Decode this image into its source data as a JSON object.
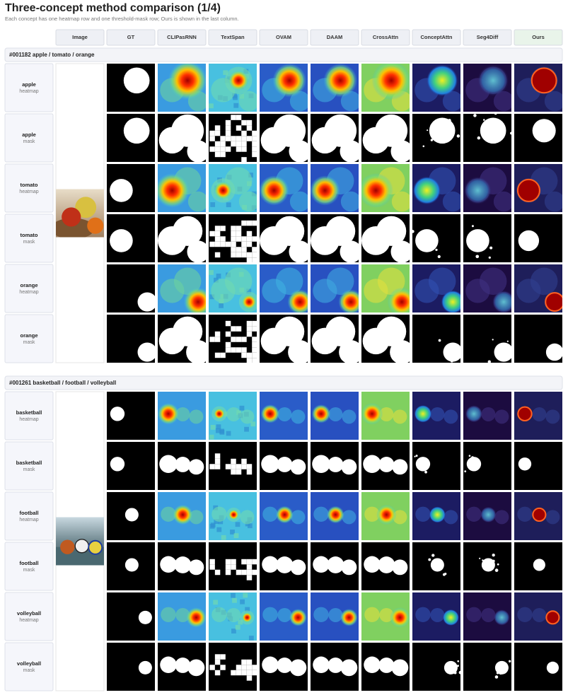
{
  "header": {
    "title": "Three-concept method comparison (1/4)",
    "subtitle": "Each concept has one heatmap row and one threshold-mask row; Ours is shown in the last column."
  },
  "columns": [
    "Image",
    "GT",
    "CLIPasRNN",
    "TextSpan",
    "OVAM",
    "DAAM",
    "CrossAttn",
    "ConceptAttn",
    "Seg4Diff",
    "Ours"
  ],
  "sections": [
    {
      "label": "#001182  apple / tomato / orange",
      "rows": [
        {
          "concept": "apple",
          "kind": "heatmap"
        },
        {
          "concept": "apple",
          "kind": "mask"
        },
        {
          "concept": "tomato",
          "kind": "heatmap"
        },
        {
          "concept": "tomato",
          "kind": "mask"
        },
        {
          "concept": "orange",
          "kind": "heatmap"
        },
        {
          "concept": "orange",
          "kind": "mask"
        }
      ]
    },
    {
      "label": "#001261  basketball / football / volleyball",
      "rows": [
        {
          "concept": "basketball",
          "kind": "heatmap"
        },
        {
          "concept": "basketball",
          "kind": "mask"
        },
        {
          "concept": "football",
          "kind": "heatmap"
        },
        {
          "concept": "football",
          "kind": "mask"
        },
        {
          "concept": "volleyball",
          "kind": "heatmap"
        },
        {
          "concept": "volleyball",
          "kind": "mask"
        }
      ]
    }
  ]
}
